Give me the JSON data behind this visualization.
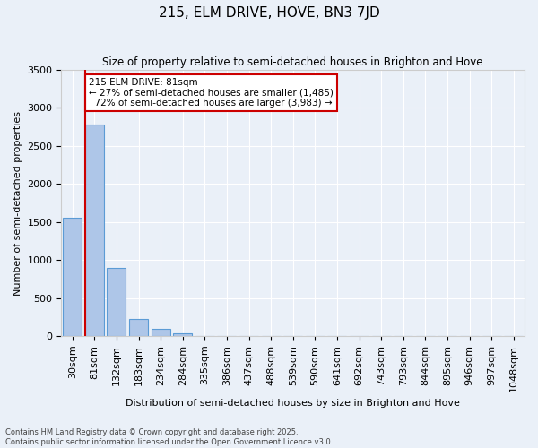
{
  "title": "215, ELM DRIVE, HOVE, BN3 7JD",
  "subtitle": "Size of property relative to semi-detached houses in Brighton and Hove",
  "xlabel": "Distribution of semi-detached houses by size in Brighton and Hove",
  "ylabel": "Number of semi-detached properties",
  "bins": [
    "30sqm",
    "81sqm",
    "132sqm",
    "183sqm",
    "234sqm",
    "284sqm",
    "335sqm",
    "386sqm",
    "437sqm",
    "488sqm",
    "539sqm",
    "590sqm",
    "641sqm",
    "692sqm",
    "743sqm",
    "793sqm",
    "844sqm",
    "895sqm",
    "946sqm",
    "997sqm",
    "1048sqm"
  ],
  "values": [
    1550,
    2780,
    900,
    225,
    95,
    40,
    5,
    0,
    0,
    0,
    0,
    0,
    0,
    0,
    0,
    0,
    0,
    0,
    0,
    0,
    0
  ],
  "property_label": "215 ELM DRIVE: 81sqm",
  "pct_smaller": 27,
  "pct_larger": 72,
  "n_smaller": 1485,
  "n_larger": 3983,
  "vline_bin_index": 1,
  "bar_color": "#aec6e8",
  "bar_edge_color": "#5b9bd5",
  "vline_color": "#cc0000",
  "annotation_box_color": "#cc0000",
  "background_color": "#eaf0f8",
  "grid_color": "#ffffff",
  "ylim": [
    0,
    3500
  ],
  "footer1": "Contains HM Land Registry data © Crown copyright and database right 2025.",
  "footer2": "Contains public sector information licensed under the Open Government Licence v3.0."
}
